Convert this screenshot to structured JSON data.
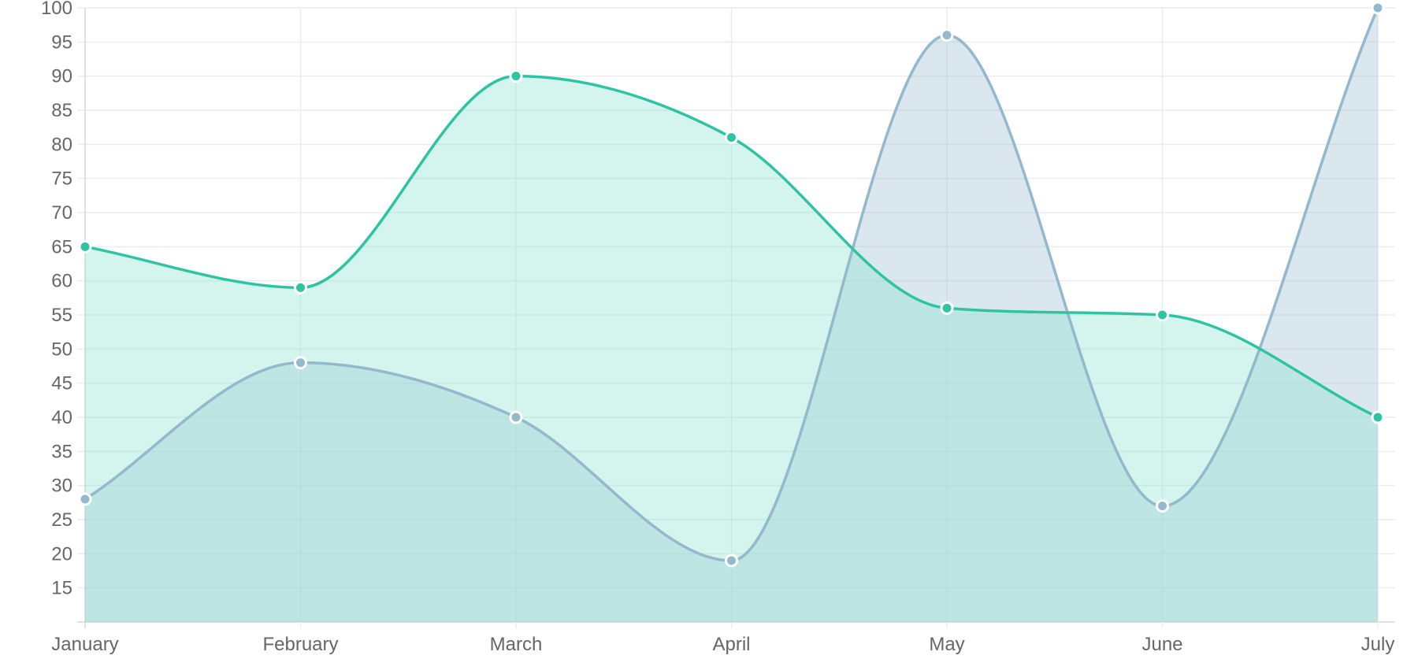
{
  "chart_data": {
    "type": "area",
    "categories": [
      "January",
      "February",
      "March",
      "April",
      "May",
      "June",
      "July"
    ],
    "series": [
      {
        "values": [
          28,
          48,
          40,
          19,
          96,
          27,
          100
        ],
        "line_color": "#94b8cc",
        "fill_color": "#9fc1d5",
        "point_color": "#94b8cc"
      },
      {
        "values": [
          65,
          59,
          90,
          81,
          56,
          55,
          40
        ],
        "line_color": "#2ec4a2",
        "fill_color": "#8fe3d2",
        "point_color": "#2ec4a2"
      }
    ],
    "y_ticks": [
      15,
      20,
      25,
      30,
      35,
      40,
      45,
      50,
      55,
      60,
      65,
      70,
      75,
      80,
      85,
      90,
      95,
      100
    ],
    "ylim": [
      10,
      100
    ],
    "grid": true,
    "title": "",
    "xlabel": "",
    "ylabel": ""
  }
}
